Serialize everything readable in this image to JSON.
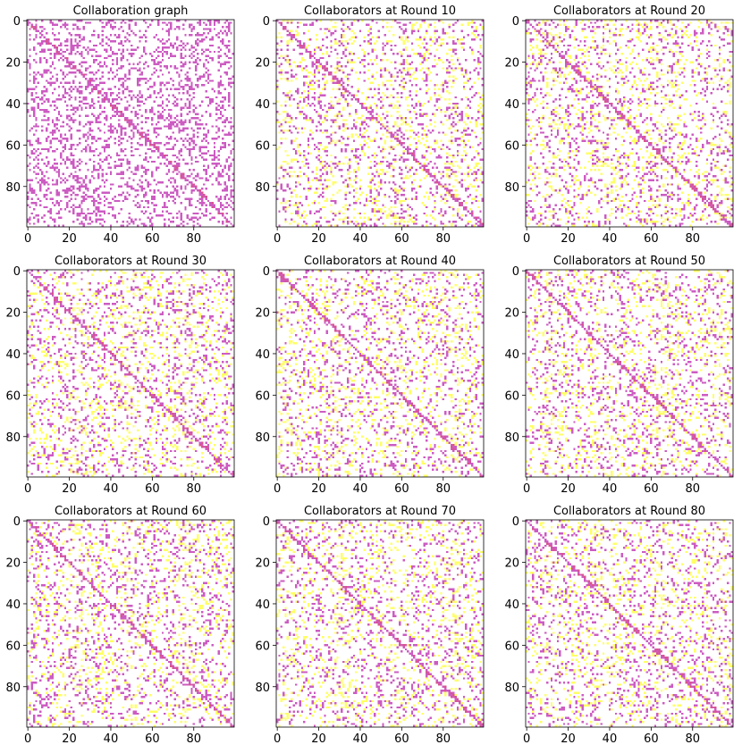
{
  "chart_data": [
    {
      "type": "heatmap",
      "title": "Collaboration graph",
      "n": 100,
      "xticks": [
        0,
        20,
        40,
        60,
        80
      ],
      "yticks": [
        0,
        20,
        40,
        60,
        80
      ],
      "xlim": [
        0,
        99
      ],
      "ylim": [
        99,
        0
      ],
      "grid": false,
      "density": {
        "magenta": 0.25,
        "yellow": 0.0
      }
    },
    {
      "type": "heatmap",
      "title": "Collaborators at Round 10",
      "n": 100,
      "xticks": [
        0,
        20,
        40,
        60,
        80
      ],
      "yticks": [
        0,
        20,
        40,
        60,
        80
      ],
      "xlim": [
        0,
        99
      ],
      "ylim": [
        99,
        0
      ],
      "grid": false,
      "density": {
        "magenta": 0.12,
        "yellow": 0.1
      }
    },
    {
      "type": "heatmap",
      "title": "Collaborators at Round 20",
      "n": 100,
      "xticks": [
        0,
        20,
        40,
        60,
        80
      ],
      "yticks": [
        0,
        20,
        40,
        60,
        80
      ],
      "xlim": [
        0,
        99
      ],
      "ylim": [
        99,
        0
      ],
      "grid": false,
      "density": {
        "magenta": 0.12,
        "yellow": 0.1
      }
    },
    {
      "type": "heatmap",
      "title": "Collaborators at Round 30",
      "n": 100,
      "xticks": [
        0,
        20,
        40,
        60,
        80
      ],
      "yticks": [
        0,
        20,
        40,
        60,
        80
      ],
      "xlim": [
        0,
        99
      ],
      "ylim": [
        99,
        0
      ],
      "grid": false,
      "density": {
        "magenta": 0.12,
        "yellow": 0.1
      }
    },
    {
      "type": "heatmap",
      "title": "Collaborators at Round 40",
      "n": 100,
      "xticks": [
        0,
        20,
        40,
        60,
        80
      ],
      "yticks": [
        0,
        20,
        40,
        60,
        80
      ],
      "xlim": [
        0,
        99
      ],
      "ylim": [
        99,
        0
      ],
      "grid": false,
      "density": {
        "magenta": 0.12,
        "yellow": 0.1
      }
    },
    {
      "type": "heatmap",
      "title": "Collaborators at Round 50",
      "n": 100,
      "xticks": [
        0,
        20,
        40,
        60,
        80
      ],
      "yticks": [
        0,
        20,
        40,
        60,
        80
      ],
      "xlim": [
        0,
        99
      ],
      "ylim": [
        99,
        0
      ],
      "grid": false,
      "density": {
        "magenta": 0.12,
        "yellow": 0.1
      }
    },
    {
      "type": "heatmap",
      "title": "Collaborators at Round 60",
      "n": 100,
      "xticks": [
        0,
        20,
        40,
        60,
        80
      ],
      "yticks": [
        0,
        20,
        40,
        60,
        80
      ],
      "xlim": [
        0,
        99
      ],
      "ylim": [
        99,
        0
      ],
      "grid": false,
      "density": {
        "magenta": 0.12,
        "yellow": 0.1
      }
    },
    {
      "type": "heatmap",
      "title": "Collaborators at Round 70",
      "n": 100,
      "xticks": [
        0,
        20,
        40,
        60,
        80
      ],
      "yticks": [
        0,
        20,
        40,
        60,
        80
      ],
      "xlim": [
        0,
        99
      ],
      "ylim": [
        99,
        0
      ],
      "grid": false,
      "density": {
        "magenta": 0.12,
        "yellow": 0.1
      }
    },
    {
      "type": "heatmap",
      "title": "Collaborators at Round 80",
      "n": 100,
      "xticks": [
        0,
        20,
        40,
        60,
        80
      ],
      "yticks": [
        0,
        20,
        40,
        60,
        80
      ],
      "xlim": [
        0,
        99
      ],
      "ylim": [
        99,
        0
      ],
      "grid": false,
      "density": {
        "magenta": 0.12,
        "yellow": 0.1
      }
    }
  ],
  "colors": {
    "background": "#ffffff",
    "magenta_cell": "#cc5cc2",
    "red_cell": "#d9548a",
    "yellow_cell": "#ffff66",
    "axis": "#000000"
  }
}
